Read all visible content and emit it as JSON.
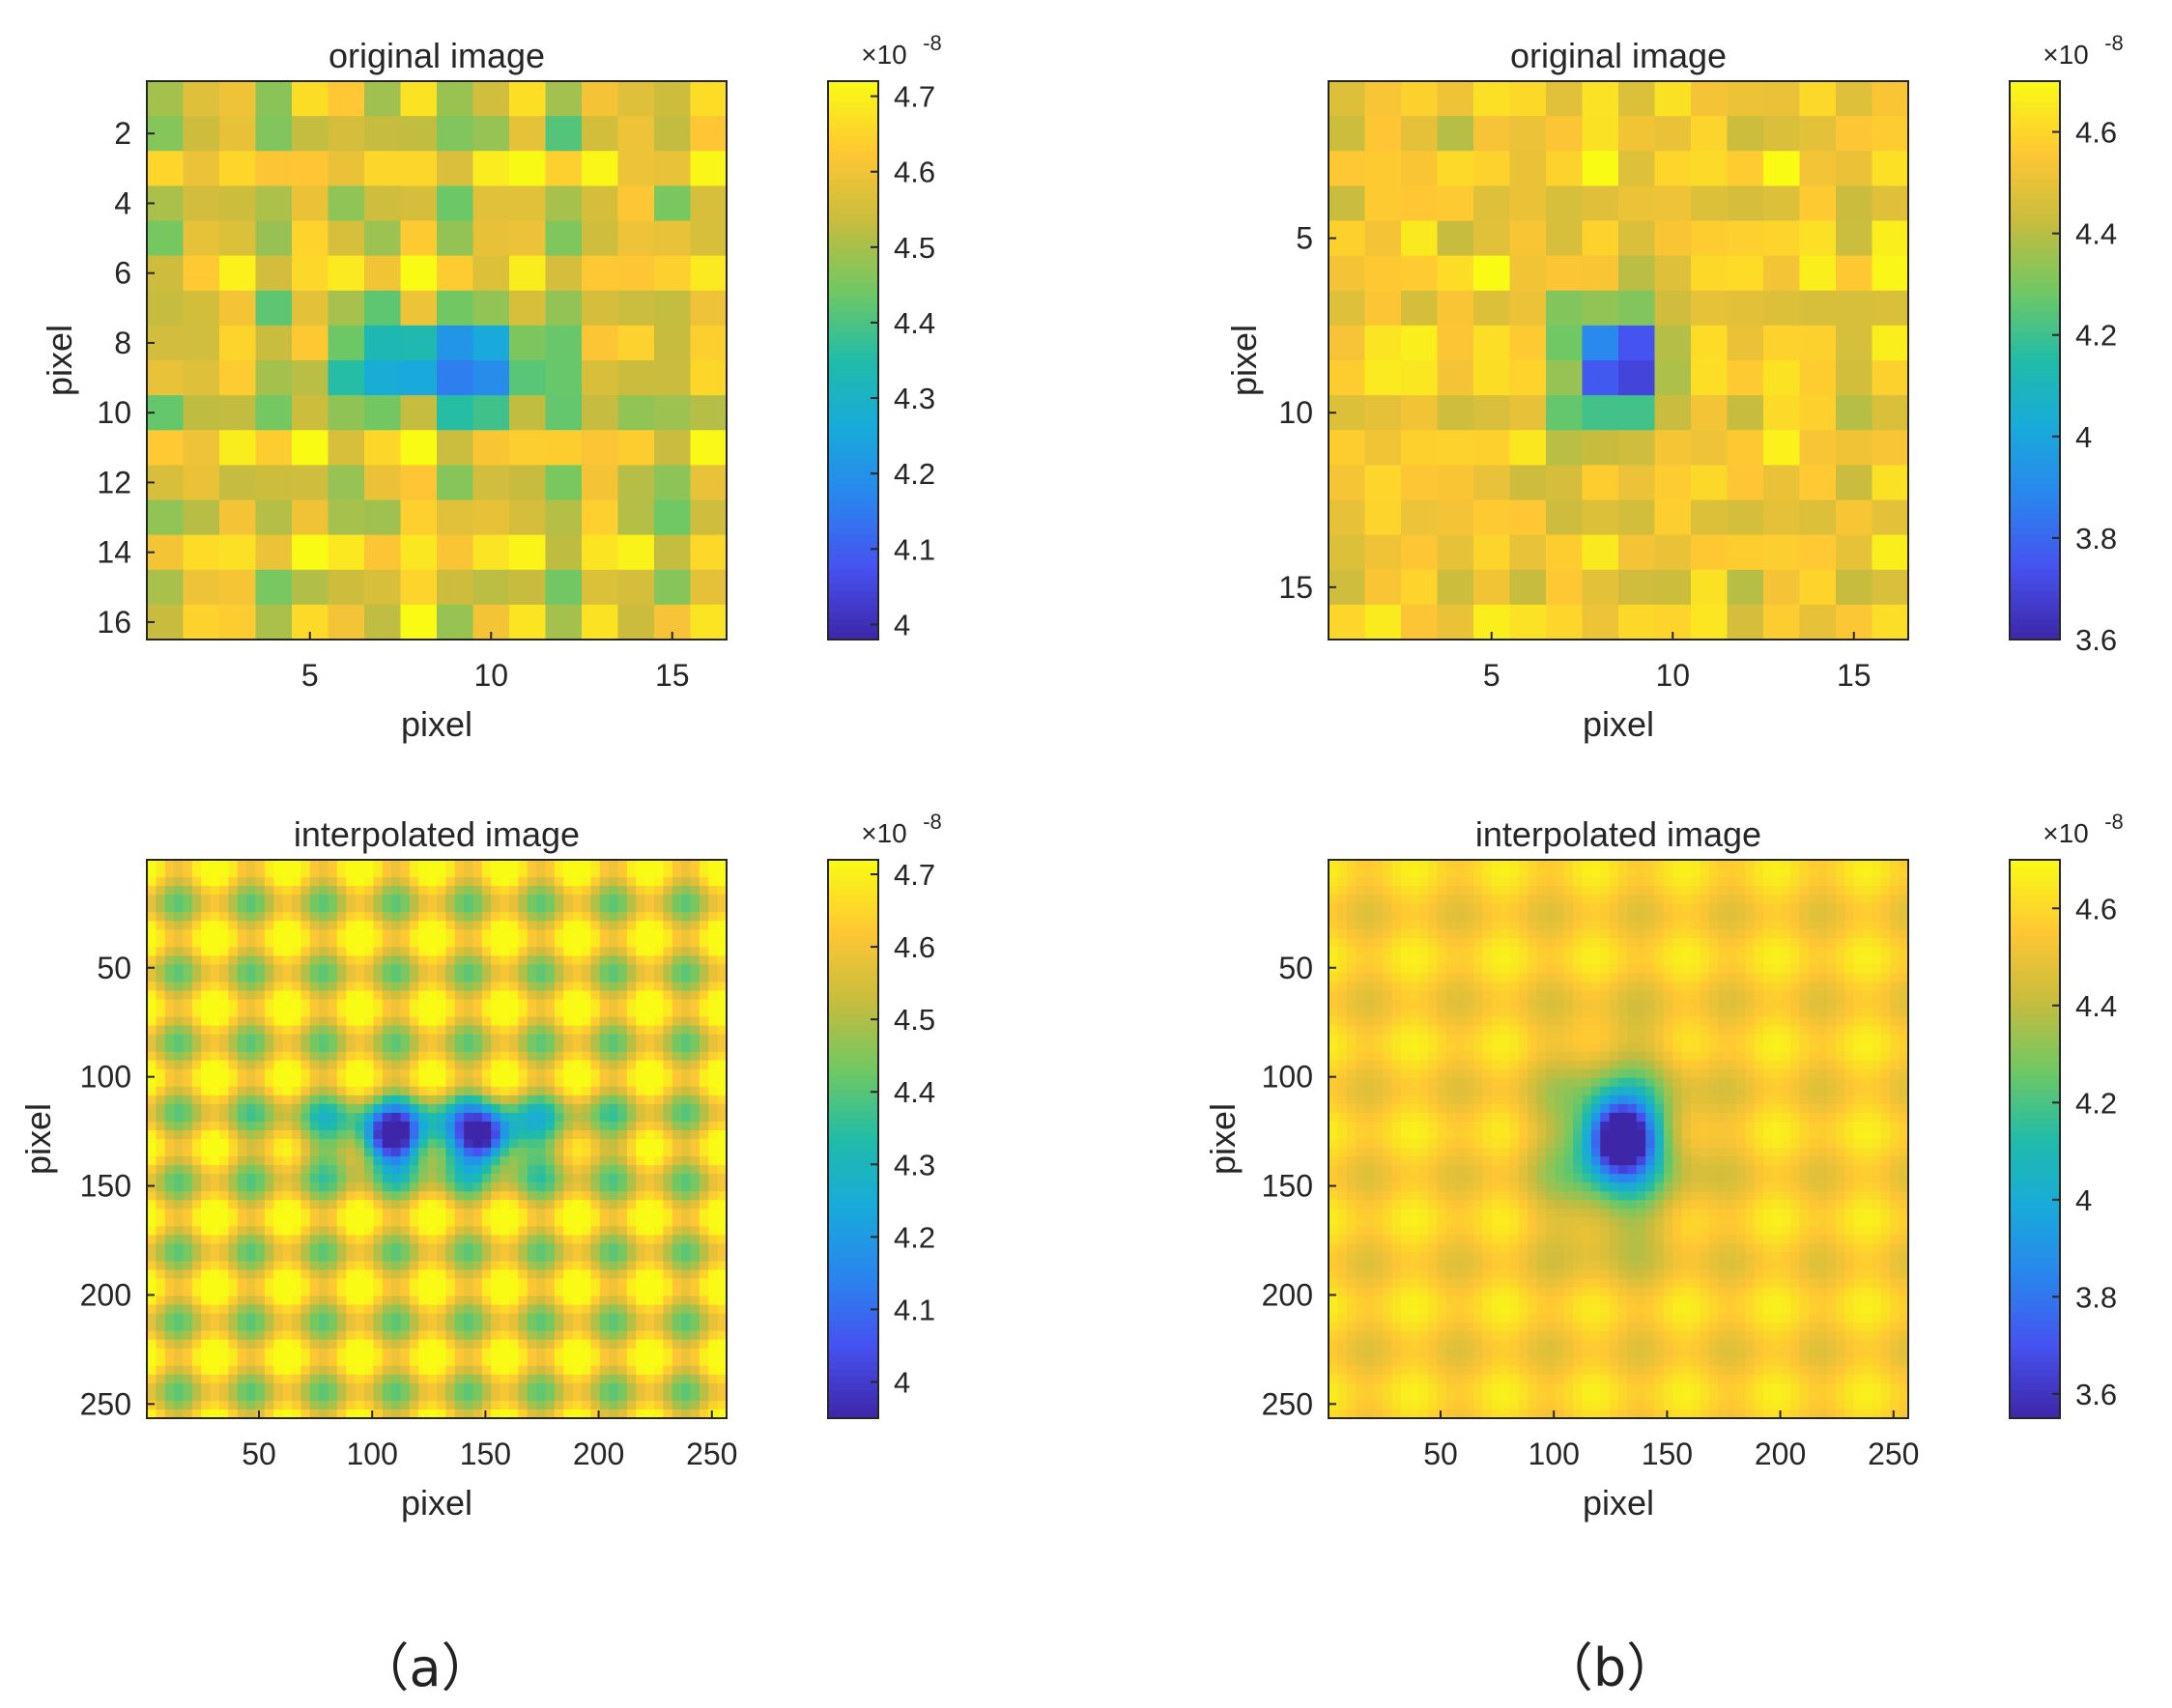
{
  "colors": {
    "axis": "#262626",
    "colormap": "parula"
  },
  "panel_labels": [
    "（a）",
    "（b）"
  ],
  "chart_data": [
    {
      "type": "heatmap",
      "panel": "a",
      "title": "original image",
      "xlabel": "pixel",
      "ylabel": "pixel",
      "x_ticks": [
        5,
        10,
        15
      ],
      "y_ticks": [
        2,
        4,
        6,
        8,
        10,
        12,
        14,
        16
      ],
      "xlim": [
        0.5,
        16.5
      ],
      "ylim": [
        0.5,
        16.5
      ],
      "grid_size": 16,
      "colorbar": {
        "ticks": [
          4,
          4.1,
          4.2,
          4.3,
          4.4,
          4.5,
          4.6,
          4.7
        ],
        "range": [
          3.98,
          4.72
        ],
        "exponent_label": "×10",
        "exponent": "-8"
      },
      "blobs": [
        {
          "cx": 8,
          "cy": 8.5,
          "sx": 1.6,
          "sy": 0.55,
          "depth": 0.5
        },
        {
          "cx": 10,
          "cy": 8.5,
          "sx": 1.0,
          "sy": 0.55,
          "depth": 0.35
        },
        {
          "cx": 8.5,
          "cy": 9,
          "sx": 5.0,
          "sy": 1.2,
          "depth": 0.18
        }
      ],
      "field": {
        "base": 4.58,
        "row_amp": 0.06,
        "col_amp": 0.06,
        "noise": 0.07,
        "seed": 11
      }
    },
    {
      "type": "heatmap",
      "panel": "b",
      "title": "original image",
      "xlabel": "pixel",
      "ylabel": "pixel",
      "x_ticks": [
        5,
        10,
        15
      ],
      "y_ticks": [
        5,
        10,
        15
      ],
      "xlim": [
        0.5,
        16.5
      ],
      "ylim": [
        0.5,
        16.5
      ],
      "grid_size": 16,
      "colorbar": {
        "ticks": [
          3.6,
          3.8,
          4,
          4.2,
          4.4,
          4.6
        ],
        "range": [
          3.6,
          4.7
        ],
        "exponent_label": "×10",
        "exponent": "-8"
      },
      "blobs": [
        {
          "cx": 8.5,
          "cy": 8.5,
          "sx": 0.85,
          "sy": 0.85,
          "depth": 1.0
        },
        {
          "cx": 8.5,
          "cy": 9,
          "sx": 1.7,
          "sy": 2.6,
          "depth": 0.35
        }
      ],
      "field": {
        "base": 4.55,
        "row_amp": 0.04,
        "col_amp": 0.04,
        "noise": 0.09,
        "seed": 23
      }
    },
    {
      "type": "heatmap",
      "panel": "a",
      "title": "interpolated image",
      "xlabel": "pixel",
      "ylabel": "pixel",
      "x_ticks": [
        50,
        100,
        150,
        200,
        250
      ],
      "y_ticks": [
        50,
        100,
        150,
        200,
        250
      ],
      "xlim": [
        0.5,
        256.5
      ],
      "ylim": [
        0.5,
        256.5
      ],
      "grid_size": 64,
      "colorbar": {
        "ticks": [
          4,
          4.1,
          4.2,
          4.3,
          4.4,
          4.5,
          4.6,
          4.7
        ],
        "range": [
          3.95,
          4.72
        ],
        "exponent_label": "×10",
        "exponent": "-8"
      },
      "blobs": [
        {
          "cx": 108,
          "cy": 128,
          "sx": 12,
          "sy": 11,
          "depth": 0.45
        },
        {
          "cx": 150,
          "cy": 128,
          "sx": 12,
          "sy": 11,
          "depth": 0.45
        },
        {
          "cx": 130,
          "cy": 128,
          "sx": 60,
          "sy": 17,
          "depth": 0.35
        }
      ],
      "field": {
        "base": 4.6,
        "row_amp": 0.1,
        "col_amp": 0.1,
        "noise": 0.0,
        "seed": 5,
        "period": 32
      }
    },
    {
      "type": "heatmap",
      "panel": "b",
      "title": "interpolated image",
      "xlabel": "pixel",
      "ylabel": "pixel",
      "x_ticks": [
        50,
        100,
        150,
        200,
        250
      ],
      "y_ticks": [
        50,
        100,
        150,
        200,
        250
      ],
      "xlim": [
        0.5,
        256.5
      ],
      "ylim": [
        0.5,
        256.5
      ],
      "grid_size": 64,
      "colorbar": {
        "ticks": [
          3.6,
          3.8,
          4,
          4.2,
          4.4,
          4.6
        ],
        "range": [
          3.55,
          4.7
        ],
        "exponent_label": "×10",
        "exponent": "-8"
      },
      "blobs": [
        {
          "cx": 130,
          "cy": 128,
          "sx": 14,
          "sy": 16,
          "depth": 1.0
        },
        {
          "cx": 128,
          "cy": 132,
          "sx": 30,
          "sy": 42,
          "depth": 0.45
        }
      ],
      "field": {
        "base": 4.57,
        "row_amp": 0.05,
        "col_amp": 0.05,
        "noise": 0.0,
        "seed": 9,
        "period": 40
      }
    }
  ]
}
